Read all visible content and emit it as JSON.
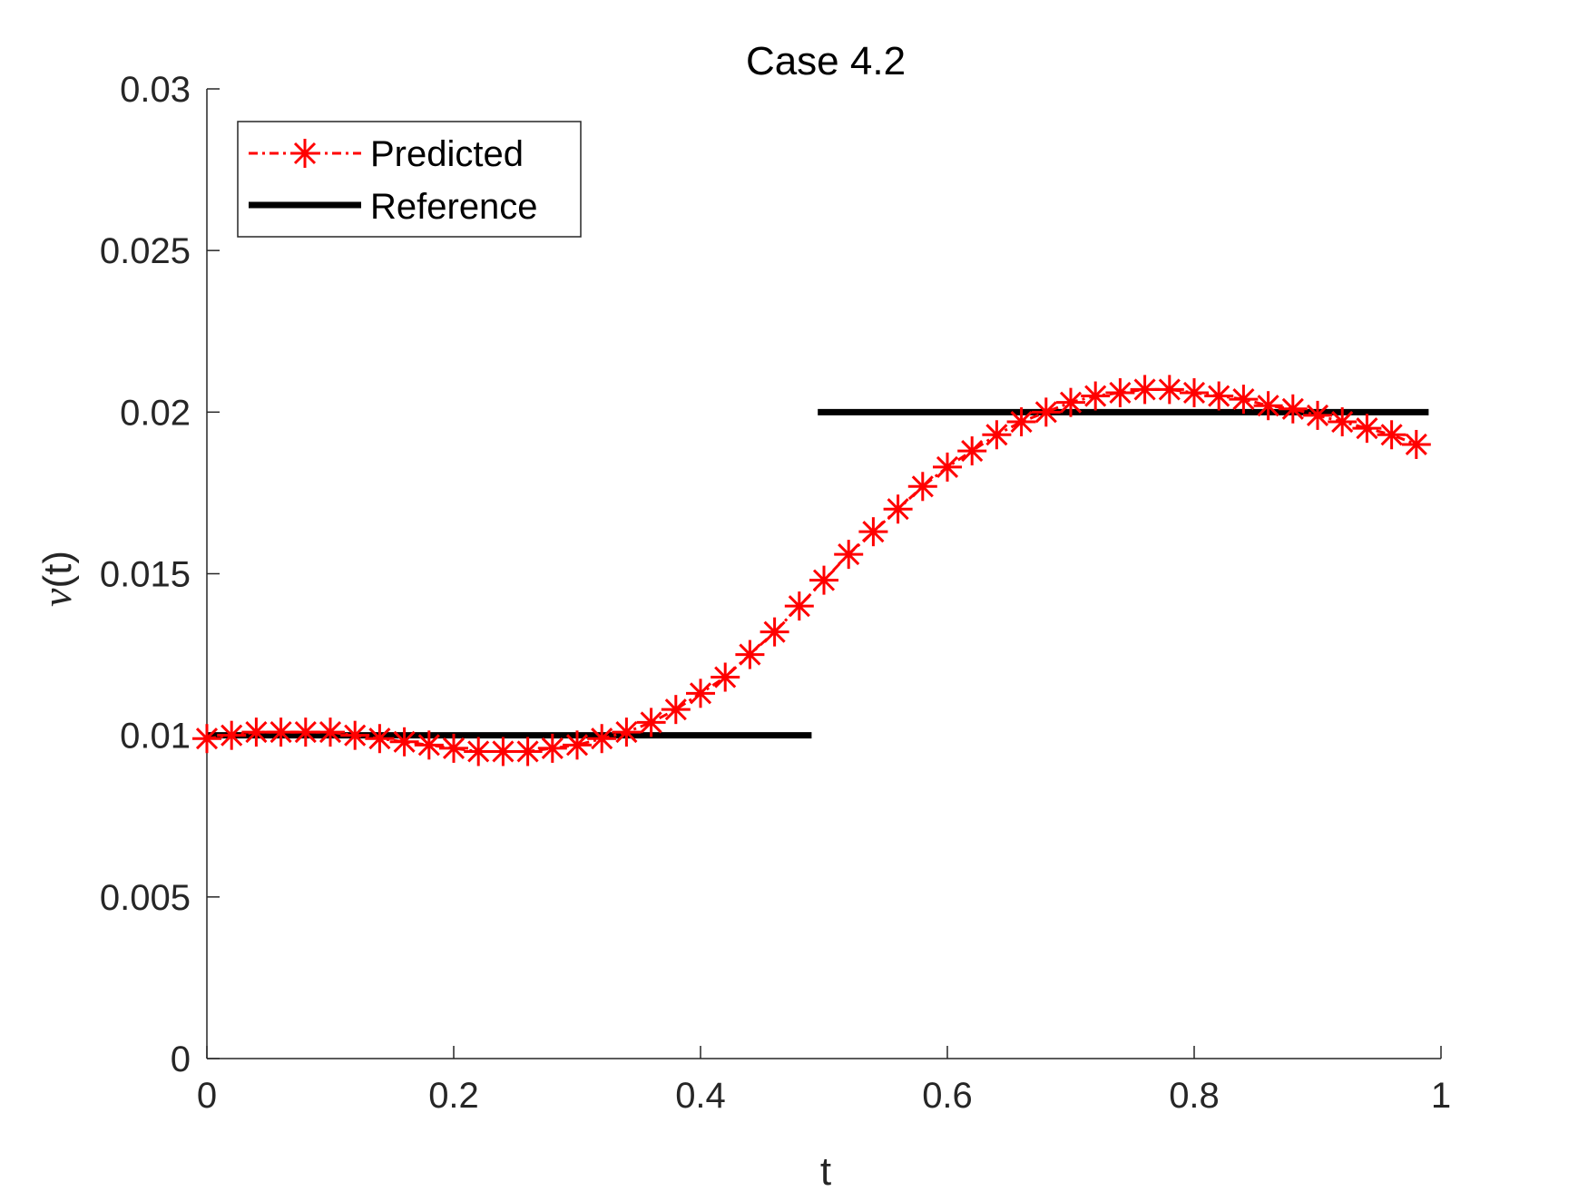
{
  "chart_data": {
    "type": "line",
    "title": "Case 4.2",
    "xlabel": "t",
    "ylabel_symbol": "ν",
    "ylabel_suffix": "(t)",
    "xlim": [
      0,
      1
    ],
    "ylim": [
      0,
      0.03
    ],
    "xticks": [
      0,
      0.2,
      0.4,
      0.6,
      0.8,
      1
    ],
    "xtick_labels": [
      "0",
      "0.2",
      "0.4",
      "0.6",
      "0.8",
      "1"
    ],
    "yticks": [
      0,
      0.005,
      0.01,
      0.015,
      0.02,
      0.025,
      0.03
    ],
    "ytick_labels": [
      "0",
      "0.005",
      "0.01",
      "0.015",
      "0.02",
      "0.025",
      "0.03"
    ],
    "legend_position": "top-left",
    "series": [
      {
        "name": "Predicted",
        "color": "#ff0000",
        "style": "dash-dot with asterisk markers",
        "x": [
          0.0,
          0.02,
          0.04,
          0.06,
          0.08,
          0.1,
          0.12,
          0.14,
          0.16,
          0.18,
          0.2,
          0.22,
          0.24,
          0.26,
          0.28,
          0.3,
          0.32,
          0.34,
          0.36,
          0.38,
          0.4,
          0.42,
          0.44,
          0.46,
          0.48,
          0.5,
          0.52,
          0.54,
          0.56,
          0.58,
          0.6,
          0.62,
          0.64,
          0.66,
          0.68,
          0.7,
          0.72,
          0.74,
          0.76,
          0.78,
          0.8,
          0.82,
          0.84,
          0.86,
          0.88,
          0.9,
          0.92,
          0.94,
          0.96,
          0.98
        ],
        "y": [
          0.0099,
          0.01,
          0.0101,
          0.0101,
          0.0101,
          0.0101,
          0.01,
          0.0099,
          0.0098,
          0.0097,
          0.0096,
          0.0095,
          0.0095,
          0.0095,
          0.0096,
          0.0097,
          0.0099,
          0.0101,
          0.0104,
          0.0108,
          0.0113,
          0.0118,
          0.0125,
          0.0132,
          0.014,
          0.0148,
          0.0156,
          0.0163,
          0.017,
          0.0177,
          0.0183,
          0.0188,
          0.0193,
          0.0197,
          0.02,
          0.0203,
          0.0205,
          0.0206,
          0.0207,
          0.0207,
          0.0206,
          0.0205,
          0.0204,
          0.0202,
          0.0201,
          0.0199,
          0.0197,
          0.0195,
          0.0193,
          0.019
        ]
      },
      {
        "name": "Reference",
        "color": "#000000",
        "style": "solid thick",
        "segments": [
          {
            "x": [
              0.0,
              0.49
            ],
            "y": [
              0.01,
              0.01
            ]
          },
          {
            "x": [
              0.495,
              0.99
            ],
            "y": [
              0.02,
              0.02
            ]
          }
        ]
      }
    ]
  }
}
